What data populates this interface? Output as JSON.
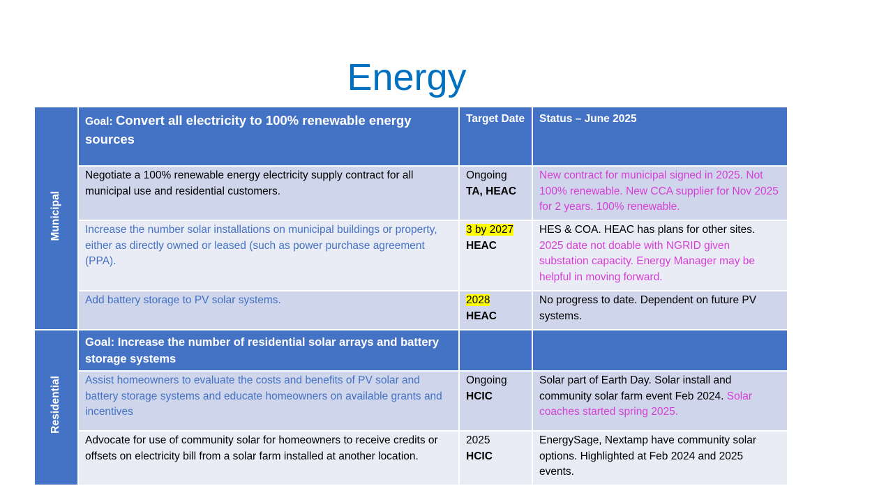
{
  "title": "Energy",
  "sections": [
    {
      "label": "Municipal",
      "goal": {
        "prefix": "Goal:",
        "text": "Convert all electricity to 100% renewable energy sources"
      },
      "headers": [
        "Target Date",
        "Status – June 2025"
      ],
      "rows": [
        {
          "task": {
            "text": "Negotiate a 100% renewable energy electricity supply contract for all municipal use and residential customers.",
            "color": "#000000"
          },
          "target": {
            "text": "Ongoing",
            "highlight": false
          },
          "owner": "TA, HEAC",
          "status": [
            {
              "text": "New contract for municipal signed in 2025.  Not 100% renewable.  New CCA supplier for Nov 2025 for 2 years.  100% renewable.",
              "color": "#d63fd6"
            }
          ]
        },
        {
          "task": {
            "text": "Increase the number solar installations on municipal buildings or property, either as directly owned or leased (such as power purchase agreement (PPA).",
            "color": "#4472c4"
          },
          "target": {
            "text": "3 by 2027",
            "highlight": true
          },
          "owner": "HEAC",
          "status": [
            {
              "text": "HES & COA.  HEAC has plans for other sites. ",
              "color": "#000000"
            },
            {
              "text": "2025 date not doable with NGRID given substation capacity.  Energy Manager may be helpful in moving forward.",
              "color": "#d63fd6"
            }
          ]
        },
        {
          "task": {
            "text": "Add battery storage to PV solar systems.",
            "color": "#4472c4"
          },
          "target": {
            "text": "2028",
            "highlight": true
          },
          "owner": "HEAC",
          "status": [
            {
              "text": "No progress to date.  Dependent on future PV systems.",
              "color": "#000000"
            }
          ]
        }
      ]
    },
    {
      "label": "Residential",
      "goal": {
        "text": "Goal: Increase the number of residential solar arrays and battery storage systems"
      },
      "rows": [
        {
          "task": {
            "text": "Assist homeowners to evaluate the costs and benefits of PV solar and battery storage systems and educate homeowners on available grants and incentives",
            "color": "#4472c4"
          },
          "target": {
            "text": "Ongoing",
            "highlight": false
          },
          "owner": "HCIC",
          "status": [
            {
              "text": "Solar part of Earth Day.  Solar install and community solar farm event Feb 2024. ",
              "color": "#000000"
            },
            {
              "text": "Solar coaches started spring 2025.",
              "color": "#d63fd6"
            }
          ]
        },
        {
          "task": {
            "text": "Advocate for use of community solar for homeowners to receive credits or offsets on electricity bill from a solar farm installed at another location.",
            "color": "#000000"
          },
          "target": {
            "text": "2025",
            "highlight": false
          },
          "owner": "HCIC",
          "status": [
            {
              "text": "EnergySage, Nextamp have community solar options.  Highlighted at Feb 2024 and 2025 events.",
              "color": "#000000"
            }
          ]
        }
      ]
    }
  ]
}
